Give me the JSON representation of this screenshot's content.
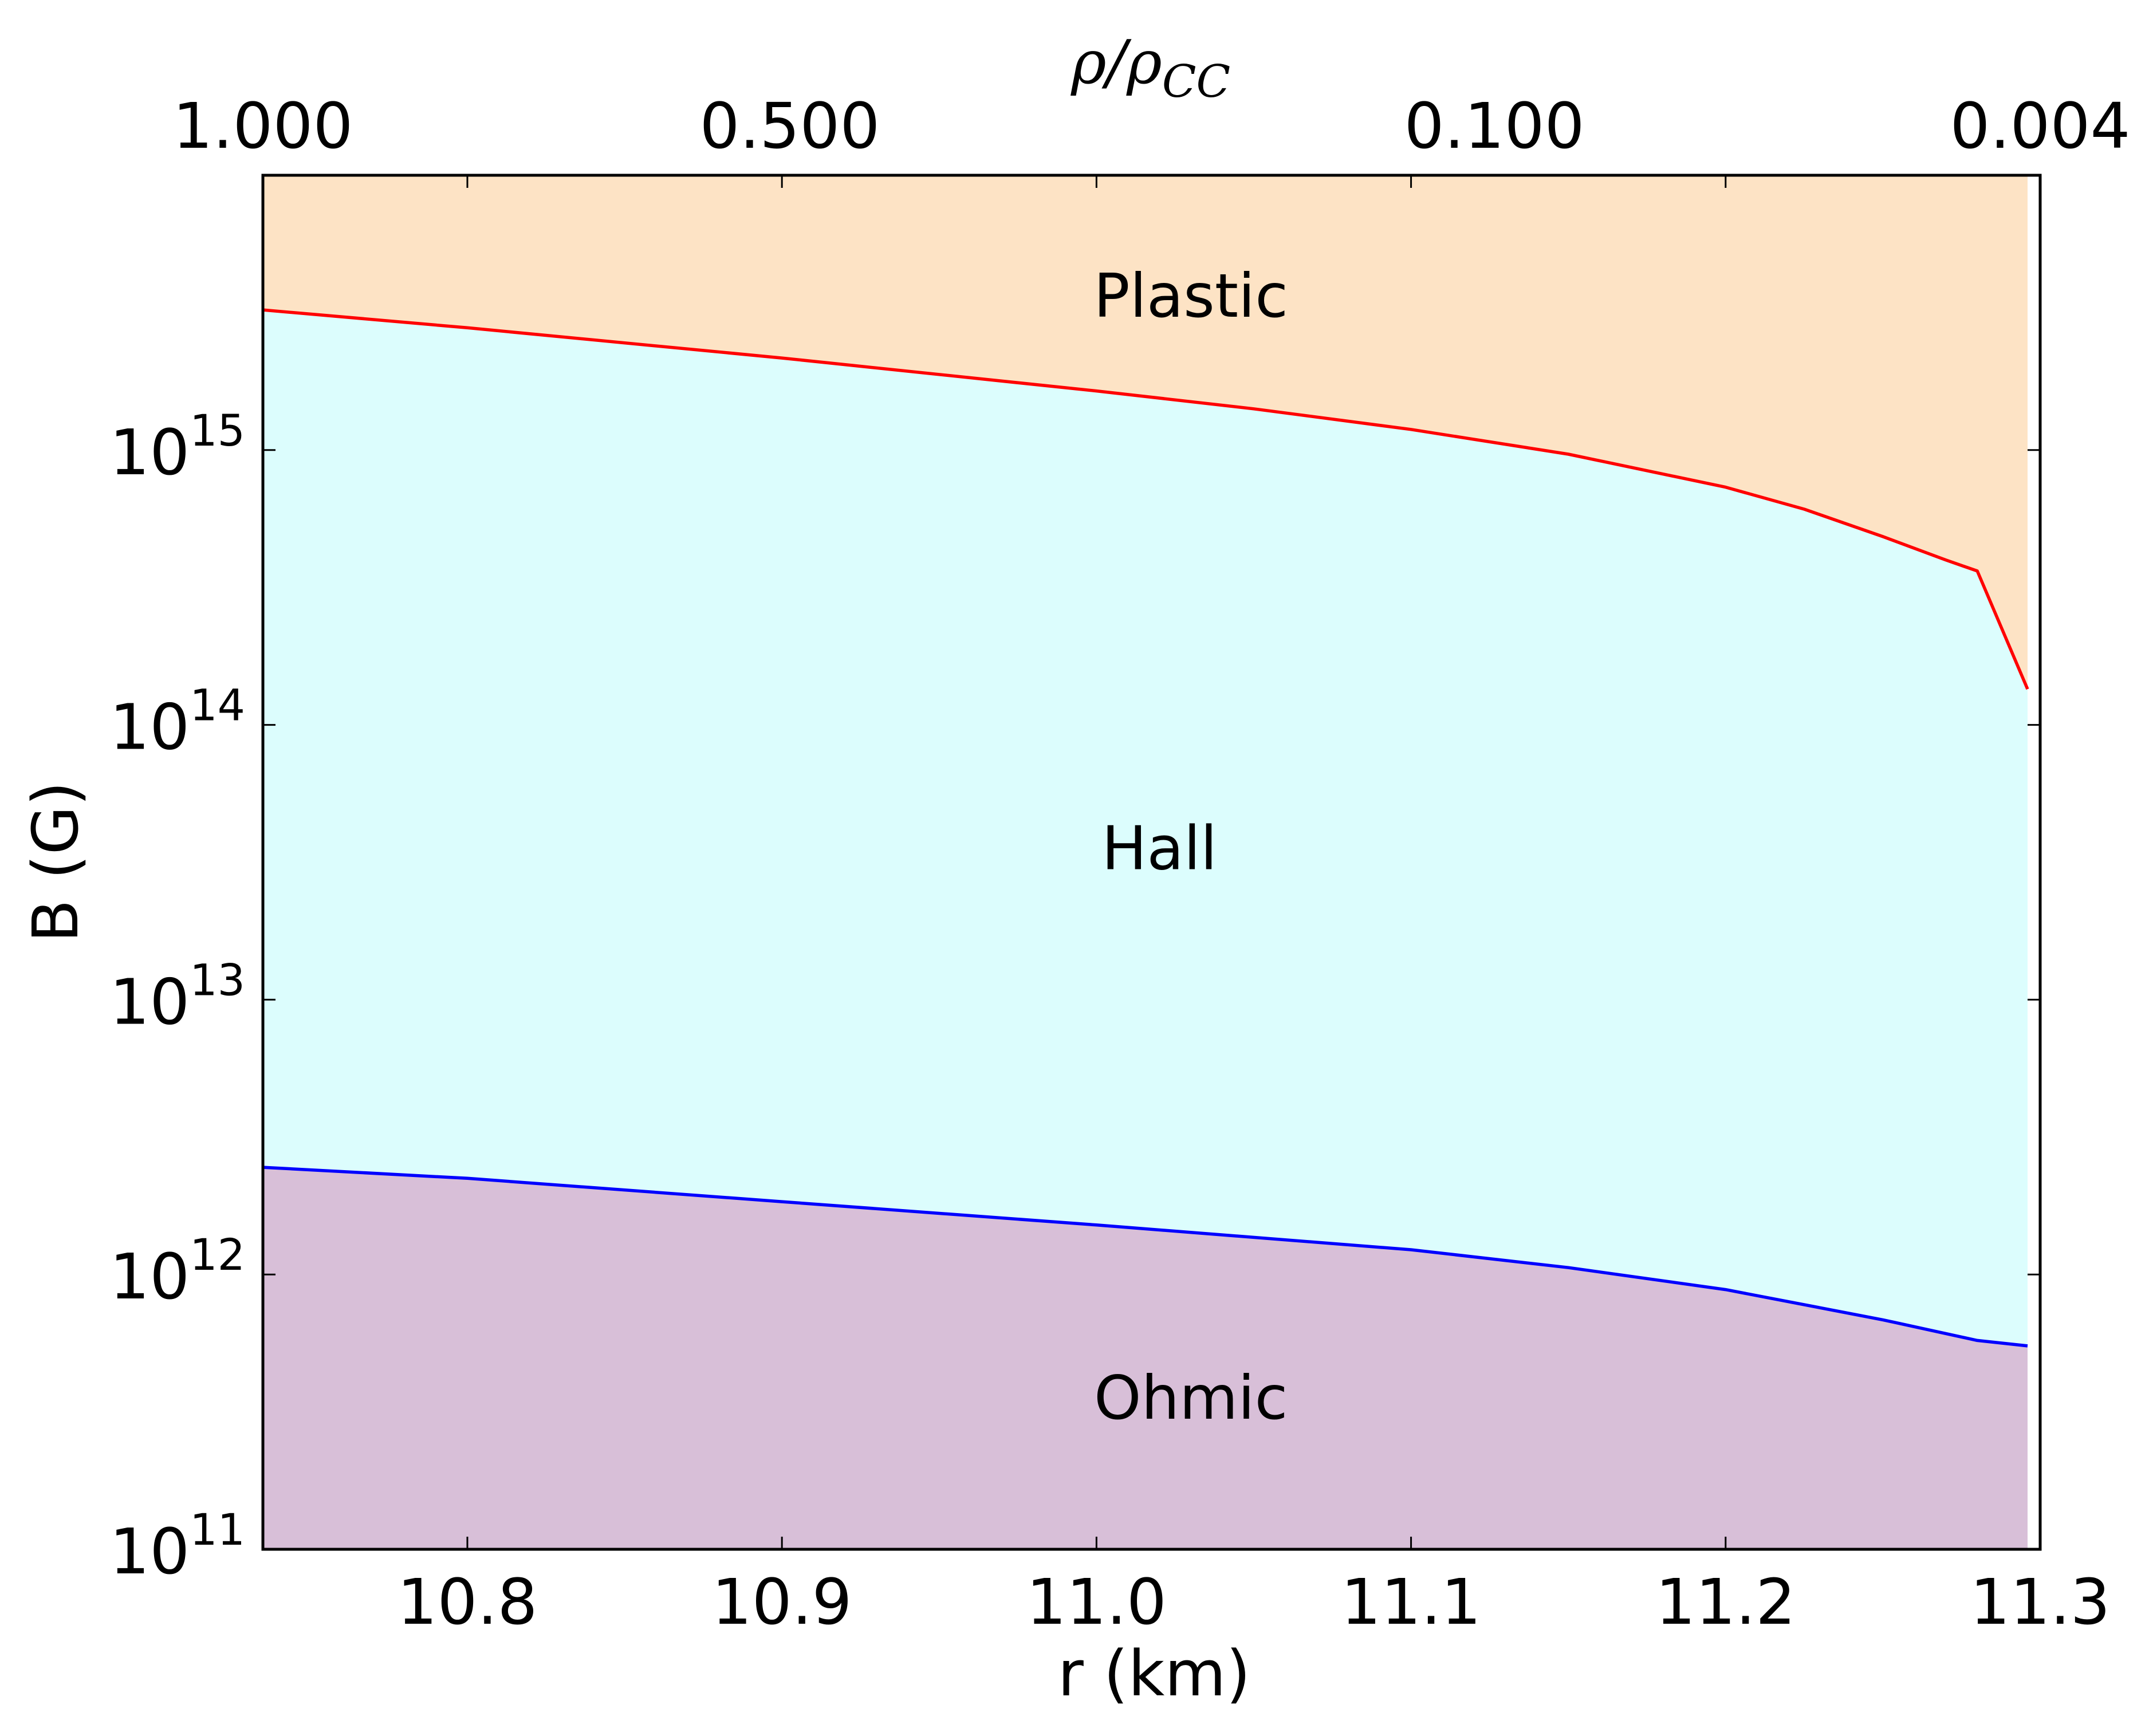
{
  "chart_data": {
    "type": "area",
    "xlabel": "r (km)",
    "ylabel": "B (G)",
    "xlim": [
      10.735,
      11.3
    ],
    "ylim_log10": [
      11,
      16
    ],
    "x_ticks": [
      {
        "value": 10.8,
        "label": "10.8"
      },
      {
        "value": 10.9,
        "label": "10.9"
      },
      {
        "value": 11.0,
        "label": "11.0"
      },
      {
        "value": 11.1,
        "label": "11.1"
      },
      {
        "value": 11.2,
        "label": "11.2"
      },
      {
        "value": 11.3,
        "label": "11.3"
      }
    ],
    "y_ticks": [
      {
        "exp": 11,
        "base": "10",
        "sup": "11"
      },
      {
        "exp": 12,
        "base": "10",
        "sup": "12"
      },
      {
        "exp": 13,
        "base": "10",
        "sup": "13"
      },
      {
        "exp": 14,
        "base": "10",
        "sup": "14"
      },
      {
        "exp": 15,
        "base": "10",
        "sup": "15"
      }
    ],
    "top_axis": {
      "label_main": "ρ/ρ",
      "label_sub": "CC",
      "ticks": [
        {
          "r": 10.735,
          "label": "1.000"
        },
        {
          "r": 10.9025,
          "label": "0.500"
        },
        {
          "r": 11.1265,
          "label": "0.100"
        },
        {
          "r": 11.3,
          "label": "0.004"
        }
      ]
    },
    "series": [
      {
        "name": "plastic-boundary",
        "color": "#ff0000",
        "x": [
          10.735,
          10.8,
          10.9,
          11.0,
          11.05,
          11.1,
          11.15,
          11.2,
          11.225,
          11.25,
          11.27,
          11.28,
          11.296
        ],
        "log10": [
          15.51,
          15.445,
          15.335,
          15.215,
          15.15,
          15.075,
          14.985,
          14.865,
          14.785,
          14.685,
          14.6,
          14.56,
          14.13
        ]
      },
      {
        "name": "ohmic-boundary",
        "color": "#0000ff",
        "x": [
          10.735,
          10.8,
          10.9,
          11.0,
          11.1,
          11.15,
          11.2,
          11.25,
          11.28,
          11.296
        ],
        "log10": [
          12.39,
          12.35,
          12.265,
          12.18,
          12.09,
          12.025,
          11.945,
          11.835,
          11.76,
          11.74
        ]
      }
    ],
    "regions": [
      {
        "name": "Plastic",
        "label": "Plastic",
        "color": "#fde3c5",
        "label_x": 11.03,
        "label_log10": 15.56
      },
      {
        "name": "Hall",
        "label": "Hall",
        "color": "#dcfdfd",
        "label_x": 11.02,
        "label_log10": 13.55
      },
      {
        "name": "Ohmic",
        "label": "Ohmic",
        "color": "#d8bfd8",
        "label_x": 11.03,
        "label_log10": 11.55
      }
    ],
    "data_end_x": 11.296
  }
}
